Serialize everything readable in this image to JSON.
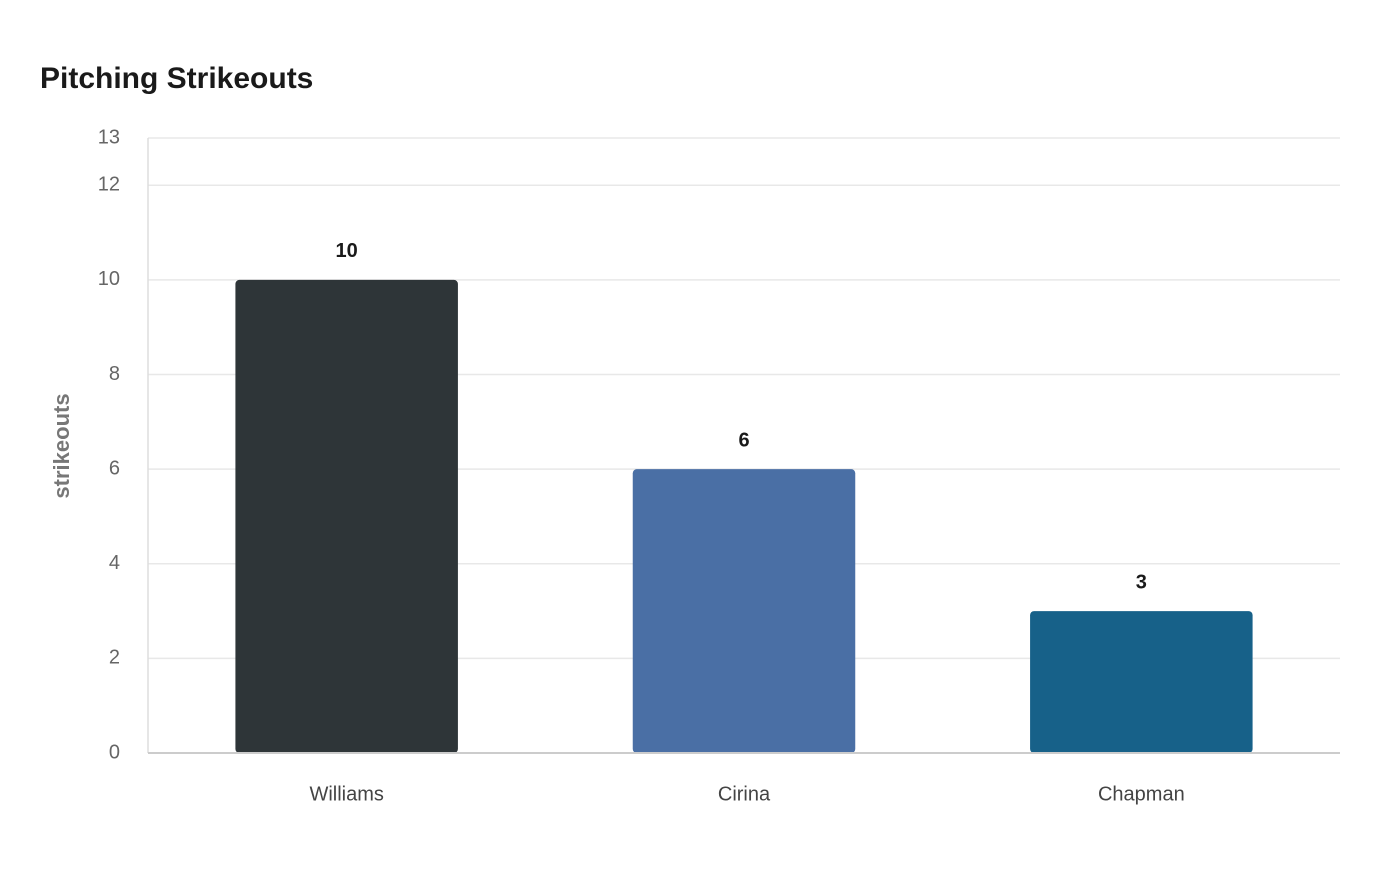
{
  "chart_data": {
    "type": "bar",
    "title": "Pitching Strikeouts",
    "y_label": "strikeouts",
    "categories": [
      "Williams",
      "Cirina",
      "Chapman"
    ],
    "values": [
      10,
      6,
      3
    ],
    "colors": [
      "#2e3538",
      "#4a6fa5",
      "#176189"
    ],
    "ylim": [
      0,
      13
    ],
    "yticks": [
      0,
      2,
      4,
      6,
      8,
      10,
      12,
      13
    ],
    "grid": true,
    "data_labels": true
  }
}
